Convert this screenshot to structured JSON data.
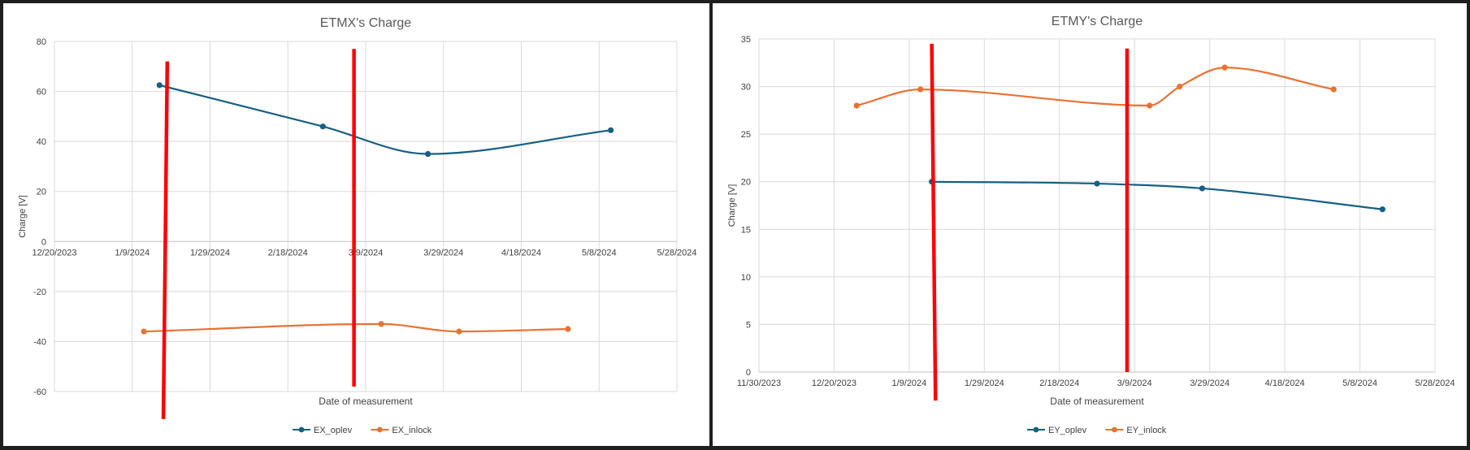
{
  "chart_data": [
    {
      "type": "line",
      "title": "ETMX's Charge",
      "xlabel": "Date of measurement",
      "ylabel": "Charge [V]",
      "ylim": [
        -60,
        80
      ],
      "yticks": [
        -60,
        -40,
        -20,
        0,
        20,
        40,
        60,
        80
      ],
      "xlim": [
        "2023-12-20",
        "2024-05-28"
      ],
      "xticks": [
        "12/20/2023",
        "1/9/2024",
        "1/29/2024",
        "2/18/2024",
        "3/9/2024",
        "3/29/2024",
        "4/18/2024",
        "5/8/2024",
        "5/28/2024"
      ],
      "grid": true,
      "legend": "bottom",
      "series": [
        {
          "name": "EX_oplev",
          "color": "#156082",
          "x": [
            "2024-01-16",
            "2024-02-27",
            "2024-03-25",
            "2024-05-11"
          ],
          "y": [
            62.5,
            46,
            35,
            44.5
          ]
        },
        {
          "name": "EX_inlock",
          "color": "#E97132",
          "x": [
            "2024-01-12",
            "2024-03-13",
            "2024-04-02",
            "2024-04-30"
          ],
          "y": [
            -36,
            -33,
            -36,
            -35
          ]
        }
      ],
      "markers": {
        "color": "#FF0000",
        "lines": [
          {
            "x": [
              "2024-01-18",
              "2024-01-17"
            ],
            "y": [
              72,
              -71
            ]
          },
          {
            "x": [
              "2024-03-06",
              "2024-03-06"
            ],
            "y": [
              77,
              -58
            ]
          }
        ]
      }
    },
    {
      "type": "line",
      "title": "ETMY's Charge",
      "xlabel": "Date of measurement",
      "ylabel": "Charge [V]",
      "ylim": [
        0,
        35
      ],
      "yticks": [
        0,
        5,
        10,
        15,
        20,
        25,
        30,
        35
      ],
      "xlim": [
        "2023-11-30",
        "2024-05-28"
      ],
      "xticks": [
        "11/30/2023",
        "12/20/2023",
        "1/9/2024",
        "1/29/2024",
        "2/18/2024",
        "3/9/2024",
        "3/29/2024",
        "4/18/2024",
        "5/8/2024",
        "5/28/2024"
      ],
      "grid": true,
      "legend": "bottom",
      "series": [
        {
          "name": "EY_oplev",
          "color": "#156082",
          "x": [
            "2024-01-15",
            "2024-02-28",
            "2024-03-27",
            "2024-05-14"
          ],
          "y": [
            20,
            19.8,
            19.3,
            17.1
          ]
        },
        {
          "name": "EY_inlock",
          "color": "#E97132",
          "x": [
            "2023-12-26",
            "2024-01-12",
            "2024-03-13",
            "2024-03-21",
            "2024-04-02",
            "2024-05-01"
          ],
          "y": [
            28,
            29.7,
            28,
            30,
            32,
            29.7
          ]
        }
      ],
      "markers": {
        "color": "#FF0000",
        "lines": [
          {
            "x": [
              "2024-01-15",
              "2024-01-16"
            ],
            "y": [
              34.5,
              -3
            ]
          },
          {
            "x": [
              "2024-03-07",
              "2024-03-07"
            ],
            "y": [
              34,
              0
            ]
          }
        ]
      }
    }
  ]
}
